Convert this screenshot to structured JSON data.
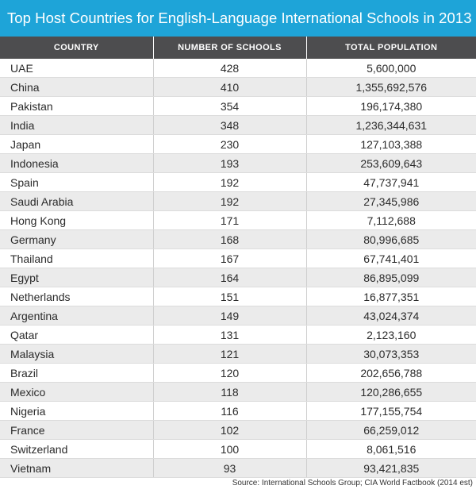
{
  "colors": {
    "title_background": "#1ea4d8",
    "header_background": "#4d4d4f",
    "stripe_background": "#ebebeb"
  },
  "chart_data": {
    "type": "table",
    "title": "Top Host Countries for English-Language International Schools in 2013",
    "columns": [
      "COUNTRY",
      "NUMBER OF SCHOOLS",
      "TOTAL POPULATION"
    ],
    "rows": [
      [
        "UAE",
        "428",
        "5,600,000"
      ],
      [
        "China",
        "410",
        "1,355,692,576"
      ],
      [
        "Pakistan",
        "354",
        "196,174,380"
      ],
      [
        "India",
        "348",
        "1,236,344,631"
      ],
      [
        "Japan",
        "230",
        "127,103,388"
      ],
      [
        "Indonesia",
        "193",
        "253,609,643"
      ],
      [
        "Spain",
        "192",
        "47,737,941"
      ],
      [
        "Saudi Arabia",
        "192",
        "27,345,986"
      ],
      [
        "Hong Kong",
        "171",
        "7,112,688"
      ],
      [
        "Germany",
        "168",
        "80,996,685"
      ],
      [
        "Thailand",
        "167",
        "67,741,401"
      ],
      [
        "Egypt",
        "164",
        "86,895,099"
      ],
      [
        "Netherlands",
        "151",
        "16,877,351"
      ],
      [
        "Argentina",
        "149",
        "43,024,374"
      ],
      [
        "Qatar",
        "131",
        "2,123,160"
      ],
      [
        "Malaysia",
        "121",
        "30,073,353"
      ],
      [
        "Brazil",
        "120",
        "202,656,788"
      ],
      [
        "Mexico",
        "118",
        "120,286,655"
      ],
      [
        "Nigeria",
        "116",
        "177,155,754"
      ],
      [
        "France",
        "102",
        "66,259,012"
      ],
      [
        "Switzerland",
        "100",
        "8,061,516"
      ],
      [
        "Vietnam",
        "93",
        "93,421,835"
      ]
    ],
    "source": "Source: International Schools Group; CIA World Factbook (2014 est)"
  }
}
